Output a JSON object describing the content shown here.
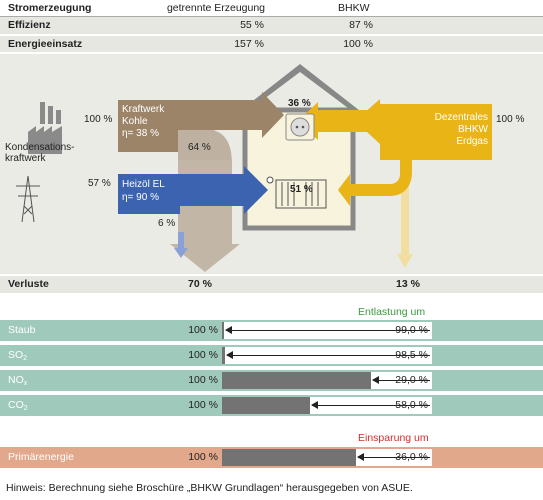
{
  "table": {
    "header": {
      "label": "Stromerzeugung",
      "col1": "getrennte Erzeugung",
      "col2": "BHKW"
    },
    "rows": [
      {
        "label": "Effizienz",
        "col1": "55 %",
        "col2": "87 %"
      },
      {
        "label": "Energieeinsatz",
        "col1": "157 %",
        "col2": "100 %"
      }
    ]
  },
  "diagram": {
    "plant_label": "Kondensations-\nkraftwerk",
    "coal_in": "100 %",
    "coal_box": "Kraftwerk\nKohle\nη= 38 %",
    "coal_loss": "64 %",
    "oil_in": "57 %",
    "oil_box": "Heizöl EL\nη= 90 %",
    "oil_loss": "6 %",
    "house_electric": "36 %",
    "house_heat": "51 %",
    "bhkw_box": "Dezentrales\nBHKW\nErdgas",
    "bhkw_in": "100 %",
    "colors": {
      "coal": "#9c8468",
      "oil": "#3b63b0",
      "bhkw": "#e8b416",
      "house": "#f8f3dc",
      "roof": "#888888"
    }
  },
  "verluste": {
    "label": "Verluste",
    "left": "70 %",
    "right": "13 %"
  },
  "entlastung_label": "Entlastung um",
  "einsparung_label": "Einsparung um",
  "bars": [
    {
      "label": "Staub",
      "sub": "",
      "pct": "100 %",
      "value": "99,0 %",
      "fraction": 0.99
    },
    {
      "label": "SO",
      "sub": "2",
      "pct": "100 %",
      "value": "98,5 %",
      "fraction": 0.985
    },
    {
      "label": "NO",
      "sub": "x",
      "pct": "100 %",
      "value": "29,0 %",
      "fraction": 0.29
    },
    {
      "label": "CO",
      "sub": "2",
      "pct": "100 %",
      "value": "58,0 %",
      "fraction": 0.58
    }
  ],
  "primary": {
    "label": "Primärenergie",
    "pct": "100 %",
    "value": "36,0 %",
    "fraction": 0.36
  },
  "footer": "Hinweis: Berechnung siehe Broschüre „BHKW Grundlagen“ herausgegeben von ASUE."
}
